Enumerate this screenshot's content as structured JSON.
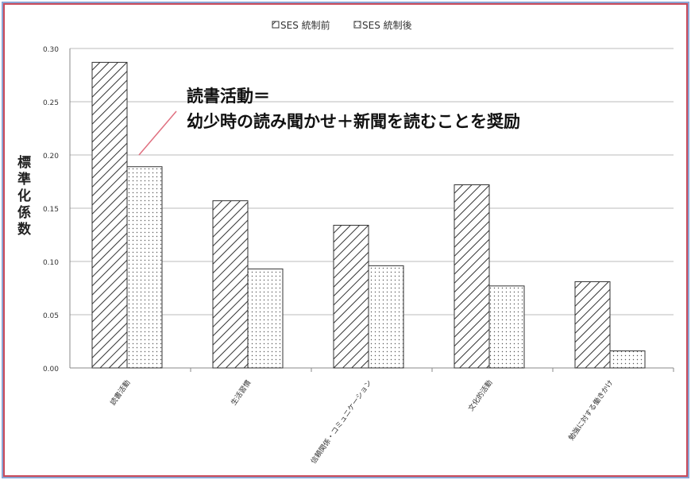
{
  "chart_data": {
    "type": "bar",
    "categories": [
      "読書活動",
      "生活習慣",
      "信頼関係・コミュニケーション",
      "文化的活動",
      "勉強に対する働きかけ"
    ],
    "series": [
      {
        "name": "SES 統制前",
        "values": [
          0.287,
          0.157,
          0.134,
          0.172,
          0.081
        ],
        "pattern": "diagonal-hatch"
      },
      {
        "name": "SES 統制後",
        "values": [
          0.189,
          0.093,
          0.096,
          0.077,
          0.016
        ],
        "pattern": "dots"
      }
    ],
    "ylabel": "標準化係数",
    "ylim": [
      0,
      0.3
    ],
    "yticks": [
      "0.00",
      "0.05",
      "0.10",
      "0.15",
      "0.20",
      "0.25",
      "0.30"
    ],
    "grid": true,
    "legend": "top",
    "annotation": {
      "line1": "読書活動＝",
      "line2": "幼少時の読み聞かせ＋新聞を読むことを奨励"
    }
  }
}
